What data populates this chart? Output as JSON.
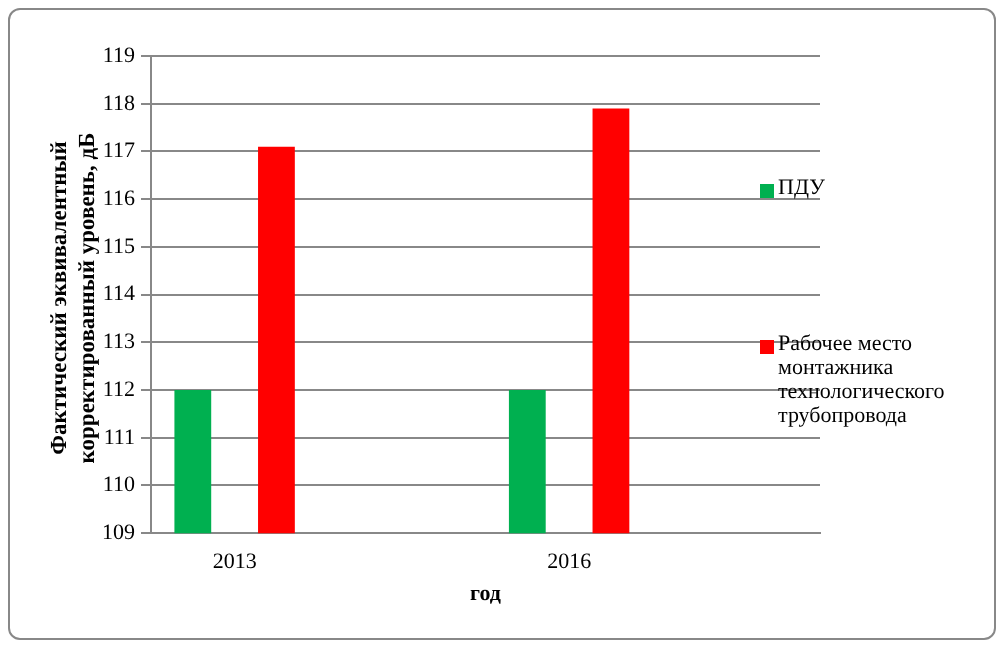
{
  "chart_data": {
    "type": "bar",
    "xlabel": "год",
    "ylabel": "Фактический эквивалентный корректированный уровень, дБ",
    "categories": [
      "2013",
      null,
      "2016",
      null
    ],
    "series": [
      {
        "name": "ПДУ",
        "color": "#00b050",
        "values": [
          112,
          null,
          112,
          null
        ]
      },
      {
        "name": "Рабочее место монтажника технологического трубопровода",
        "color": "#ff0000",
        "values": [
          117.1,
          null,
          117.9,
          null
        ]
      }
    ],
    "ylim": [
      109,
      119
    ],
    "yticks": [
      109,
      110,
      111,
      112,
      113,
      114,
      115,
      116,
      117,
      118,
      119
    ],
    "grid": "y",
    "legend": "right"
  }
}
